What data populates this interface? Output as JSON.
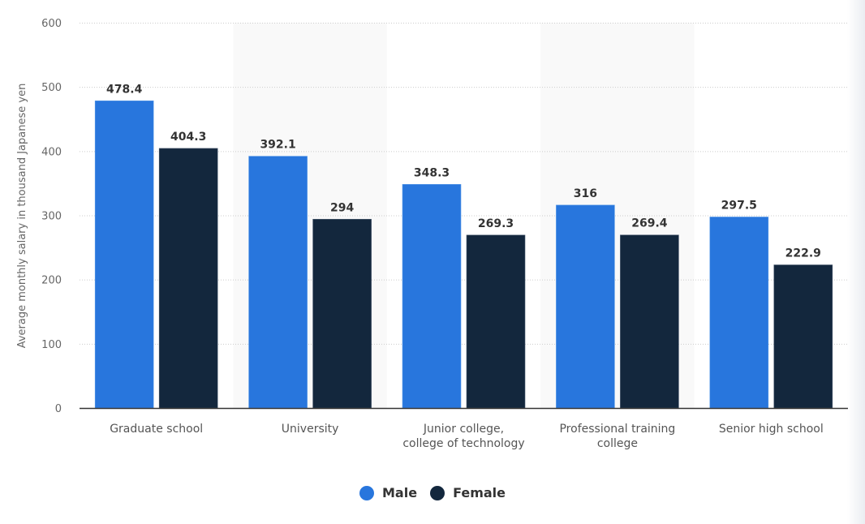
{
  "chart_data": {
    "type": "bar",
    "title": "",
    "xlabel": "",
    "ylabel": "Average monthly salary in thousand Japanese yen",
    "ylim": [
      0,
      600
    ],
    "yticks": [
      0,
      100,
      200,
      300,
      400,
      500,
      600
    ],
    "ytick_labels": [
      "0",
      "100",
      "200",
      "300",
      "400",
      "500",
      "600"
    ],
    "grid": true,
    "legend_position": "bottom-center",
    "categories": [
      [
        "Graduate school"
      ],
      [
        "University"
      ],
      [
        "Junior college,",
        "college of technology"
      ],
      [
        "Professional training",
        "college"
      ],
      [
        "Senior high school"
      ]
    ],
    "series": [
      {
        "name": "Male",
        "color": "#2876dd",
        "values": [
          478.4,
          392.1,
          348.3,
          316,
          297.5
        ],
        "labels": [
          "478.4",
          "392.1",
          "348.3",
          "316",
          "297.5"
        ]
      },
      {
        "name": "Female",
        "color": "#13273d",
        "values": [
          404.3,
          294,
          269.3,
          269.4,
          222.9
        ],
        "labels": [
          "404.3",
          "294",
          "269.3",
          "269.4",
          "222.9"
        ]
      }
    ]
  },
  "legend": {
    "items": [
      {
        "label": "Male",
        "color": "#2876dd"
      },
      {
        "label": "Female",
        "color": "#13273d"
      }
    ]
  }
}
